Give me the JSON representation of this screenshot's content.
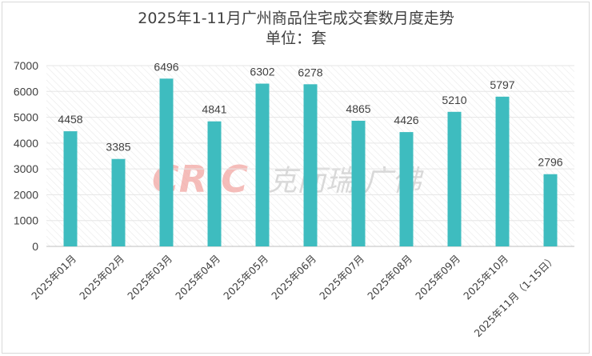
{
  "chart_data": {
    "type": "bar",
    "title": "2025年1-11月广州商品住宅成交套数月度走势",
    "subtitle": "单位：套",
    "categories": [
      "2025年01月",
      "2025年02月",
      "2025年03月",
      "2025年04月",
      "2025年05月",
      "2025年06月",
      "2025年07月",
      "2025年08月",
      "2025年09月",
      "2025年10月",
      "2025年11月（1-15日）"
    ],
    "values": [
      4458,
      3385,
      6496,
      4841,
      6302,
      6278,
      4865,
      4426,
      5210,
      5797,
      2796
    ],
    "ylim": [
      0,
      7000
    ],
    "yticks": [
      "0",
      "1000",
      "2000",
      "3000",
      "4000",
      "5000",
      "6000",
      "7000"
    ],
    "xlabel": "",
    "ylabel": "",
    "grid": true,
    "legend": "none",
    "colors": {
      "bar": "#3ebcbf",
      "text": "#404040",
      "hatch": "#e6e6e6",
      "watermark_red": "#f2a7a3",
      "watermark_grey": "#cfcfcf"
    }
  },
  "watermark": {
    "logo": "CRIC",
    "text": "克而瑞·广佛"
  }
}
